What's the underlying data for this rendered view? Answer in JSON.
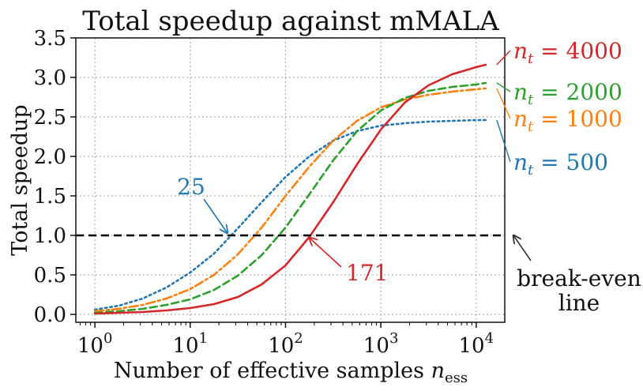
{
  "chart_data": {
    "type": "line",
    "title": "Total speedup against mMALA",
    "xlabel": "Number of effective samples",
    "xlabel_math": "n",
    "xlabel_sub": "ess",
    "ylabel": "Total speedup",
    "xscale": "log",
    "xlim_log10": [
      -0.2,
      4.3
    ],
    "ylim": [
      -0.1,
      3.5
    ],
    "grid": true,
    "xtick_exponents": [
      "0",
      "1",
      "2",
      "3",
      "4"
    ],
    "xtick_base": "10",
    "yticks": [
      "0.0",
      "0.5",
      "1.0",
      "1.5",
      "2.0",
      "2.5",
      "3.0",
      "3.5"
    ],
    "series": [
      {
        "name": "n_t = 500",
        "label_var": "n",
        "label_sub": "t",
        "label_rest": " = 500",
        "color": "#1f77b4",
        "style": "dotted",
        "crossover": 25,
        "data": [
          [
            0,
            0.06
          ],
          [
            0.25,
            0.11
          ],
          [
            0.5,
            0.2
          ],
          [
            0.75,
            0.34
          ],
          [
            1.0,
            0.53
          ],
          [
            1.25,
            0.77
          ],
          [
            1.5,
            1.09
          ],
          [
            1.75,
            1.42
          ],
          [
            2.0,
            1.74
          ],
          [
            2.25,
            2.0
          ],
          [
            2.5,
            2.2
          ],
          [
            2.75,
            2.32
          ],
          [
            3.0,
            2.39
          ],
          [
            3.25,
            2.42
          ],
          [
            3.5,
            2.44
          ],
          [
            3.75,
            2.45
          ],
          [
            4.0,
            2.46
          ],
          [
            4.1,
            2.46
          ]
        ]
      },
      {
        "name": "n_t = 1000",
        "label_var": "n",
        "label_sub": "t",
        "label_rest": " = 1000",
        "color": "#ff7f0e",
        "style": "dashdot",
        "data": [
          [
            0,
            0.04
          ],
          [
            0.25,
            0.07
          ],
          [
            0.5,
            0.12
          ],
          [
            0.75,
            0.2
          ],
          [
            1.0,
            0.32
          ],
          [
            1.25,
            0.5
          ],
          [
            1.5,
            0.76
          ],
          [
            1.75,
            1.1
          ],
          [
            2.0,
            1.5
          ],
          [
            2.25,
            1.87
          ],
          [
            2.5,
            2.2
          ],
          [
            2.75,
            2.45
          ],
          [
            3.0,
            2.62
          ],
          [
            3.25,
            2.72
          ],
          [
            3.5,
            2.78
          ],
          [
            3.75,
            2.82
          ],
          [
            4.0,
            2.85
          ],
          [
            4.1,
            2.86
          ]
        ]
      },
      {
        "name": "n_t = 2000",
        "label_var": "n",
        "label_sub": "t",
        "label_rest": " = 2000",
        "color": "#2ca02c",
        "style": "dashed",
        "data": [
          [
            0,
            0.02
          ],
          [
            0.25,
            0.04
          ],
          [
            0.5,
            0.07
          ],
          [
            0.75,
            0.12
          ],
          [
            1.0,
            0.19
          ],
          [
            1.25,
            0.31
          ],
          [
            1.5,
            0.49
          ],
          [
            1.75,
            0.75
          ],
          [
            2.0,
            1.1
          ],
          [
            2.25,
            1.52
          ],
          [
            2.5,
            1.95
          ],
          [
            2.75,
            2.32
          ],
          [
            3.0,
            2.58
          ],
          [
            3.25,
            2.74
          ],
          [
            3.5,
            2.83
          ],
          [
            3.75,
            2.88
          ],
          [
            4.0,
            2.91
          ],
          [
            4.1,
            2.93
          ]
        ]
      },
      {
        "name": "n_t = 4000",
        "label_var": "n",
        "label_sub": "t",
        "label_rest": " = 4000",
        "color": "#d62728",
        "style": "solid",
        "crossover": 171,
        "data": [
          [
            0,
            0.01
          ],
          [
            0.25,
            0.02
          ],
          [
            0.5,
            0.03
          ],
          [
            0.75,
            0.05
          ],
          [
            1.0,
            0.08
          ],
          [
            1.25,
            0.13
          ],
          [
            1.5,
            0.22
          ],
          [
            1.75,
            0.38
          ],
          [
            2.0,
            0.62
          ],
          [
            2.25,
            0.98
          ],
          [
            2.5,
            1.42
          ],
          [
            2.75,
            1.9
          ],
          [
            3.0,
            2.34
          ],
          [
            3.25,
            2.68
          ],
          [
            3.5,
            2.9
          ],
          [
            3.75,
            3.04
          ],
          [
            4.0,
            3.13
          ],
          [
            4.1,
            3.16
          ]
        ]
      }
    ],
    "reference_line": {
      "y": 1.0,
      "color": "#000000",
      "style": "dashed"
    },
    "annotations": {
      "left_crossover": "25",
      "right_crossover": "171",
      "break_even_line1": "break-even",
      "break_even_line2": "line"
    }
  }
}
